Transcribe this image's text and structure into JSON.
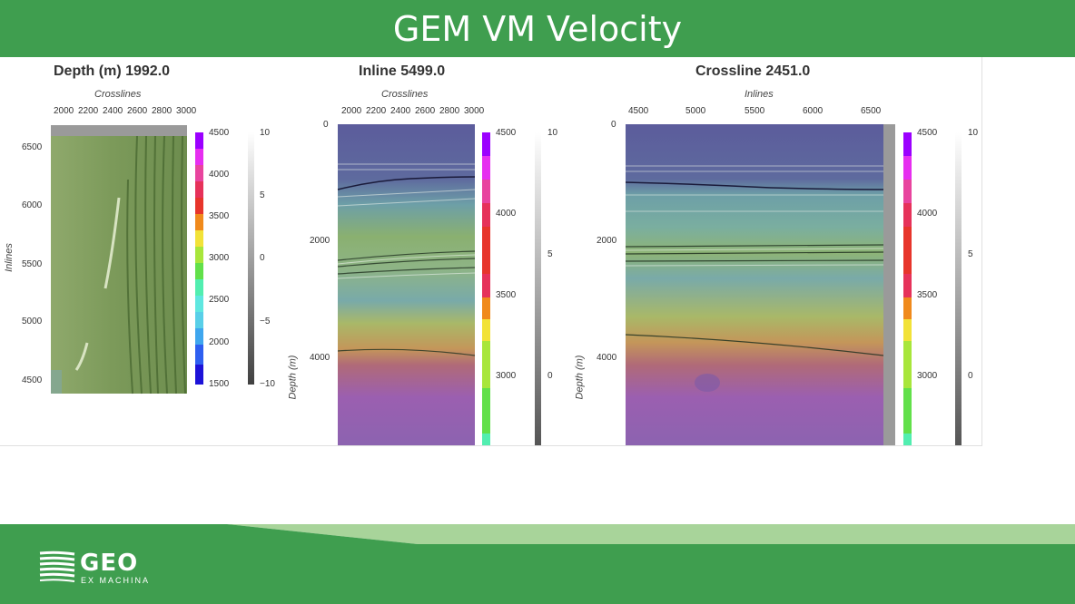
{
  "slide": {
    "title": "GEM VM Velocity"
  },
  "panels": {
    "depth": {
      "title": "Depth (m) 1992.0",
      "xlabel": "Crosslines",
      "ylabel": "Inlines",
      "xticks": [
        "2000",
        "2200",
        "2400",
        "2600",
        "2800",
        "3000"
      ],
      "yticks": [
        "6500",
        "6000",
        "5500",
        "5000",
        "4500"
      ],
      "velocity_ticks": [
        "4500",
        "4000",
        "3500",
        "3000",
        "2500",
        "2000",
        "1500"
      ],
      "amplitude_ticks": [
        "10",
        "5",
        "0",
        "−5",
        "−10"
      ]
    },
    "inline": {
      "title": "Inline 5499.0",
      "xlabel": "Crosslines",
      "ylabel": "Depth (m)",
      "xticks": [
        "2000",
        "2200",
        "2400",
        "2600",
        "2800",
        "3000"
      ],
      "yticks": [
        "0",
        "2000",
        "4000"
      ],
      "velocity_ticks": [
        "4500",
        "4000",
        "3500",
        "3000"
      ],
      "amplitude_ticks": [
        "10",
        "5",
        "0"
      ]
    },
    "crossline": {
      "title": "Crossline 2451.0",
      "xlabel": "Inlines",
      "ylabel": "Depth (m)",
      "xticks": [
        "4500",
        "5000",
        "5500",
        "6000",
        "6500"
      ],
      "yticks": [
        "0",
        "2000",
        "4000"
      ],
      "velocity_ticks": [
        "4500",
        "4000",
        "3500",
        "3000"
      ],
      "amplitude_ticks": [
        "10",
        "5",
        "0"
      ]
    }
  },
  "colors": {
    "title_bar": "#3f9e4f",
    "footer_dark": "#3f9e4f",
    "footer_light": "#a8d49a"
  },
  "footer": {
    "logo_main": "GEO",
    "logo_sub": "EX MACHINA"
  }
}
